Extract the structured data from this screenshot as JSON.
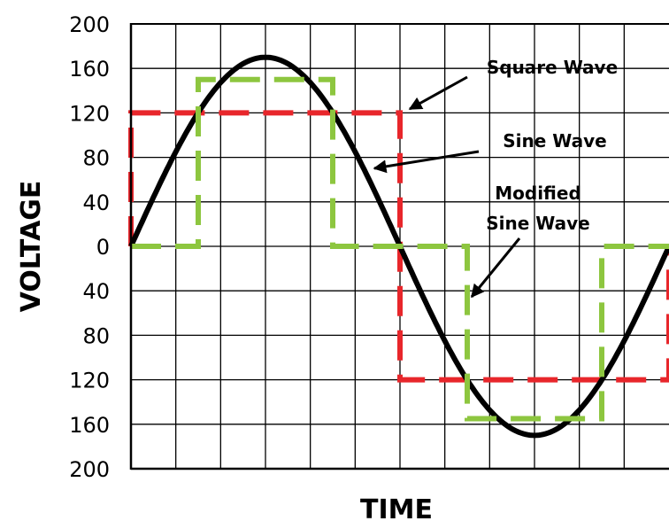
{
  "chart_data": {
    "type": "line",
    "xlabel": "TIME",
    "ylabel": "VOLTAGE",
    "ylim": [
      -200,
      200
    ],
    "x_unit_range": [
      0,
      12
    ],
    "grid": true,
    "y_ticks": [
      {
        "value": 200,
        "label": "200"
      },
      {
        "value": 160,
        "label": "160"
      },
      {
        "value": 120,
        "label": "120"
      },
      {
        "value": 80,
        "label": "80"
      },
      {
        "value": 40,
        "label": "40"
      },
      {
        "value": 0,
        "label": "0"
      },
      {
        "value": -40,
        "label": "40"
      },
      {
        "value": -80,
        "label": "80"
      },
      {
        "value": -120,
        "label": "120"
      },
      {
        "value": -160,
        "label": "160"
      },
      {
        "value": -200,
        "label": "200"
      }
    ],
    "series": [
      {
        "name": "Square Wave",
        "color": "#e8262b",
        "style": "dashed",
        "points": [
          [
            0,
            0
          ],
          [
            0,
            120
          ],
          [
            6,
            120
          ],
          [
            6,
            -120
          ],
          [
            12,
            -120
          ],
          [
            12,
            0
          ]
        ]
      },
      {
        "name": "Sine Wave",
        "color": "#000000",
        "style": "solid",
        "function": "sine",
        "amplitude": 170,
        "period": 12
      },
      {
        "name": "Modified Sine Wave",
        "color": "#8dc63f",
        "style": "dashed",
        "points": [
          [
            0,
            0
          ],
          [
            3,
            0
          ],
          [
            3,
            150
          ],
          [
            9,
            150
          ],
          [
            9,
            0
          ],
          [
            15,
            0
          ],
          [
            15,
            -155
          ],
          [
            21,
            -155
          ],
          [
            21,
            0
          ],
          [
            24,
            0
          ]
        ],
        "x_scale": 0.5
      }
    ],
    "annotations": [
      {
        "lines": [
          "Square Wave"
        ],
        "series": "Square Wave"
      },
      {
        "lines": [
          "Sine Wave"
        ],
        "series": "Sine Wave"
      },
      {
        "lines": [
          "Modified",
          "Sine Wave"
        ],
        "series": "Modified Sine Wave"
      }
    ]
  }
}
